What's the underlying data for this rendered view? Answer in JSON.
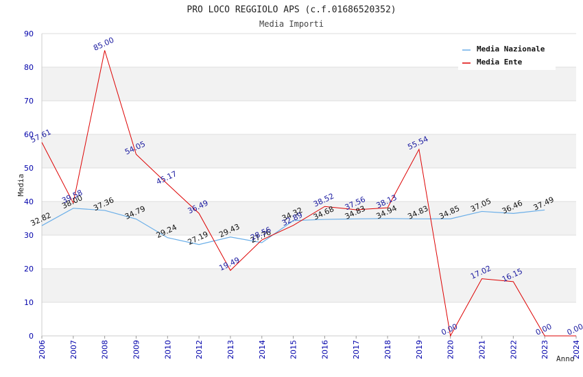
{
  "chart_data": {
    "type": "line",
    "title": "PRO LOCO REGGIOLO APS (c.f.01686520352)",
    "subtitle": "Media Importi",
    "xlabel": "Anno",
    "ylabel": "Media",
    "ylim": [
      0,
      90
    ],
    "yticks": [
      0,
      10,
      20,
      30,
      40,
      50,
      60,
      70,
      80,
      90
    ],
    "categories": [
      "2006",
      "2007",
      "2008",
      "2009",
      "2010",
      "2012",
      "2013",
      "2014",
      "2015",
      "2016",
      "2017",
      "2018",
      "2019",
      "2020",
      "2021",
      "2022",
      "2023",
      "2024"
    ],
    "series": [
      {
        "name": "Media Nazionale",
        "color": "#6aaee8",
        "values": [
          32.82,
          38.0,
          37.36,
          34.79,
          29.24,
          27.19,
          29.43,
          27.76,
          34.32,
          34.68,
          34.83,
          34.94,
          34.83,
          34.85,
          37.05,
          36.46,
          37.49,
          null
        ],
        "labels": [
          "32.82",
          "38.00",
          "37.36",
          "34.79",
          "29.24",
          "27.19",
          "29.43",
          "27.76",
          "34.32",
          "34.68",
          "34.83",
          "34.94",
          "34.83",
          "34.85",
          "37.05",
          "36.46",
          "37.49",
          ""
        ]
      },
      {
        "name": "Media Ente",
        "color": "#dd0000",
        "values": [
          57.61,
          39.58,
          85.0,
          54.05,
          45.17,
          36.49,
          19.49,
          28.56,
          32.89,
          38.52,
          37.56,
          38.13,
          55.54,
          0.0,
          17.02,
          16.15,
          0.0,
          0.0
        ],
        "labels": [
          "57.61",
          "39.58",
          "85.00",
          "54.05",
          "45.17",
          "36.49",
          "19.49",
          "28.56",
          "32.89",
          "38.52",
          "37.56",
          "38.13",
          "55.54",
          "0.00",
          "17.02",
          "16.15",
          "0.00",
          "0.00"
        ]
      }
    ],
    "legend": {
      "position": "top-right"
    },
    "grid": "alternating horizontal bands"
  }
}
